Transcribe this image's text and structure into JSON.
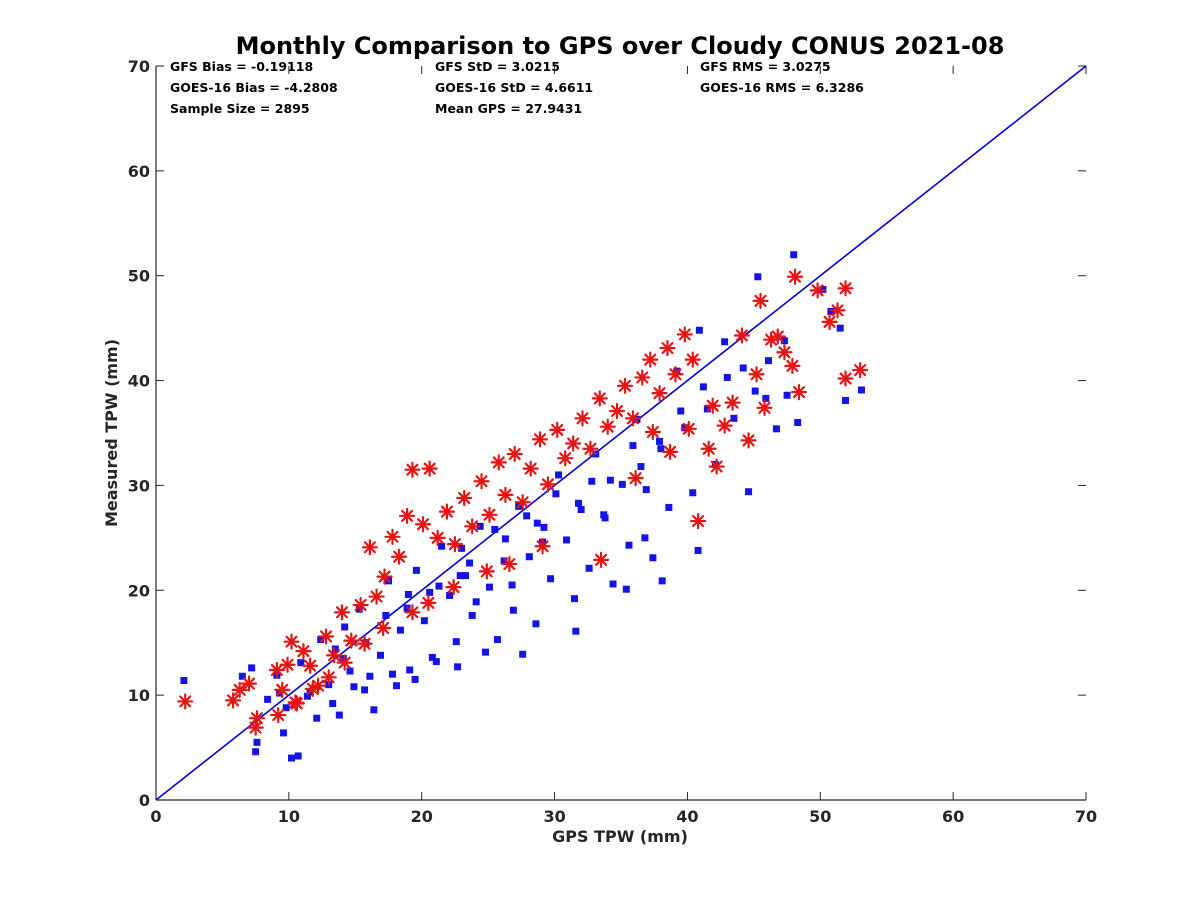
{
  "chart_data": {
    "type": "scatter",
    "title": "Monthly Comparison to GPS over Cloudy CONUS 2021-08",
    "xlabel": "GPS TPW (mm)",
    "ylabel": "Measured TPW (mm)",
    "xlim": [
      0,
      70
    ],
    "ylim": [
      0,
      70
    ],
    "xticks": [
      0,
      10,
      20,
      30,
      40,
      50,
      60,
      70
    ],
    "yticks": [
      0,
      10,
      20,
      30,
      40,
      50,
      60,
      70
    ],
    "grid": false,
    "stats": [
      [
        "GFS Bias = -0.19118",
        "GFS StD = 3.0215",
        "GFS RMS = 3.0275"
      ],
      [
        "GOES-16 Bias = -4.2808",
        "GOES-16 StD = 4.6611",
        "GOES-16 RMS = 6.3286"
      ],
      [
        "Sample Size = 2895",
        "Mean GPS = 27.9431",
        ""
      ]
    ],
    "reference_line": {
      "x": [
        0,
        70
      ],
      "y": [
        0,
        70
      ],
      "color": "#0000dd"
    },
    "series": [
      {
        "marker": "square",
        "color": "#1414e6",
        "points": [
          [
            2.1,
            11.4
          ],
          [
            6.5,
            11.8
          ],
          [
            7.2,
            12.6
          ],
          [
            7.5,
            4.6
          ],
          [
            7.6,
            5.5
          ],
          [
            9.1,
            11.9
          ],
          [
            9.6,
            6.4
          ],
          [
            9.8,
            8.8
          ],
          [
            10.2,
            4.0
          ],
          [
            10.7,
            4.2
          ],
          [
            10.9,
            13.1
          ],
          [
            11.4,
            9.9
          ],
          [
            12.1,
            7.8
          ],
          [
            12.4,
            15.3
          ],
          [
            13.0,
            11.0
          ],
          [
            13.5,
            14.4
          ],
          [
            13.8,
            8.1
          ],
          [
            14.2,
            16.5
          ],
          [
            14.6,
            12.3
          ],
          [
            15.3,
            18.2
          ],
          [
            15.7,
            10.5
          ],
          [
            16.4,
            8.6
          ],
          [
            16.9,
            13.8
          ],
          [
            17.5,
            20.9
          ],
          [
            18.1,
            10.9
          ],
          [
            18.4,
            16.2
          ],
          [
            19.1,
            12.4
          ],
          [
            19.6,
            21.9
          ],
          [
            20.2,
            17.1
          ],
          [
            20.8,
            13.6
          ],
          [
            21.5,
            24.2
          ],
          [
            22.1,
            19.5
          ],
          [
            22.6,
            15.1
          ],
          [
            23.3,
            21.4
          ],
          [
            23.8,
            17.6
          ],
          [
            24.4,
            26.1
          ],
          [
            25.1,
            20.3
          ],
          [
            25.7,
            15.3
          ],
          [
            26.2,
            22.8
          ],
          [
            26.9,
            18.1
          ],
          [
            27.3,
            28.0
          ],
          [
            28.1,
            23.2
          ],
          [
            28.6,
            16.8
          ],
          [
            29.2,
            26.0
          ],
          [
            29.7,
            21.1
          ],
          [
            30.3,
            31.0
          ],
          [
            30.9,
            24.8
          ],
          [
            31.5,
            19.2
          ],
          [
            32.0,
            27.7
          ],
          [
            32.6,
            22.1
          ],
          [
            33.1,
            33.0
          ],
          [
            33.8,
            26.9
          ],
          [
            34.4,
            20.6
          ],
          [
            35.1,
            30.1
          ],
          [
            35.6,
            24.3
          ],
          [
            36.2,
            36.3
          ],
          [
            36.9,
            29.6
          ],
          [
            37.4,
            23.1
          ],
          [
            38.0,
            33.5
          ],
          [
            38.6,
            27.9
          ],
          [
            39.2,
            40.9
          ],
          [
            39.8,
            35.5
          ],
          [
            40.4,
            29.3
          ],
          [
            40.9,
            44.8
          ],
          [
            41.5,
            37.3
          ],
          [
            42.1,
            32.0
          ],
          [
            42.8,
            43.7
          ],
          [
            43.5,
            36.4
          ],
          [
            44.6,
            29.4
          ],
          [
            45.3,
            49.9
          ],
          [
            45.9,
            38.3
          ],
          [
            46.7,
            35.4
          ],
          [
            47.3,
            43.8
          ],
          [
            48.0,
            52.0
          ],
          [
            48.3,
            36.0
          ],
          [
            50.2,
            48.7
          ],
          [
            50.8,
            46.6
          ],
          [
            51.5,
            45.0
          ],
          [
            51.9,
            38.1
          ],
          [
            53.1,
            39.1
          ],
          [
            40.8,
            23.8
          ],
          [
            36.8,
            25.0
          ],
          [
            35.4,
            20.1
          ],
          [
            38.1,
            20.9
          ],
          [
            31.6,
            16.1
          ],
          [
            27.6,
            13.9
          ],
          [
            24.8,
            14.1
          ],
          [
            22.7,
            12.7
          ],
          [
            21.1,
            13.2
          ],
          [
            19.5,
            11.5
          ],
          [
            17.8,
            12.0
          ],
          [
            16.1,
            11.8
          ],
          [
            14.9,
            10.8
          ],
          [
            13.3,
            9.2
          ],
          [
            11.6,
            10.3
          ],
          [
            10.4,
            9.1
          ],
          [
            9.3,
            10.2
          ],
          [
            8.4,
            9.6
          ],
          [
            33.7,
            27.2
          ],
          [
            29.1,
            24.6
          ],
          [
            26.8,
            20.5
          ],
          [
            24.1,
            18.9
          ],
          [
            22.9,
            21.4
          ],
          [
            20.6,
            19.8
          ],
          [
            18.9,
            18.3
          ],
          [
            17.3,
            17.6
          ],
          [
            15.8,
            15.0
          ],
          [
            14.1,
            13.5
          ],
          [
            36.5,
            31.8
          ],
          [
            34.2,
            30.5
          ],
          [
            31.8,
            28.3
          ],
          [
            28.7,
            26.4
          ],
          [
            26.3,
            24.9
          ],
          [
            23.6,
            22.6
          ],
          [
            21.3,
            20.4
          ],
          [
            19.0,
            19.6
          ],
          [
            37.9,
            34.2
          ],
          [
            39.5,
            37.1
          ],
          [
            41.2,
            39.4
          ],
          [
            43.0,
            40.3
          ],
          [
            44.2,
            41.2
          ],
          [
            45.1,
            39.0
          ],
          [
            46.1,
            41.9
          ],
          [
            47.5,
            38.6
          ],
          [
            35.9,
            33.8
          ],
          [
            32.8,
            30.4
          ],
          [
            30.1,
            29.2
          ],
          [
            27.9,
            27.1
          ],
          [
            25.5,
            25.8
          ],
          [
            23.0,
            24.0
          ]
        ]
      },
      {
        "marker": "asterisk",
        "color": "#e61414",
        "points": [
          [
            2.2,
            9.4
          ],
          [
            5.8,
            9.5
          ],
          [
            6.3,
            10.5
          ],
          [
            7.0,
            11.1
          ],
          [
            7.5,
            6.9
          ],
          [
            7.6,
            7.8
          ],
          [
            9.1,
            12.4
          ],
          [
            9.5,
            10.5
          ],
          [
            9.9,
            12.9
          ],
          [
            10.2,
            15.1
          ],
          [
            10.5,
            9.3
          ],
          [
            11.1,
            14.2
          ],
          [
            11.6,
            12.8
          ],
          [
            12.2,
            10.9
          ],
          [
            12.8,
            15.6
          ],
          [
            13.4,
            13.8
          ],
          [
            14.0,
            17.9
          ],
          [
            14.7,
            15.2
          ],
          [
            15.4,
            18.6
          ],
          [
            16.1,
            24.1
          ],
          [
            16.6,
            19.4
          ],
          [
            17.2,
            21.3
          ],
          [
            17.8,
            25.1
          ],
          [
            18.3,
            23.2
          ],
          [
            18.9,
            27.1
          ],
          [
            19.3,
            31.5
          ],
          [
            20.1,
            26.3
          ],
          [
            20.6,
            31.6
          ],
          [
            21.2,
            25.0
          ],
          [
            21.9,
            27.5
          ],
          [
            22.5,
            24.4
          ],
          [
            23.2,
            28.8
          ],
          [
            23.8,
            26.1
          ],
          [
            24.5,
            30.4
          ],
          [
            25.1,
            27.2
          ],
          [
            25.8,
            32.2
          ],
          [
            26.3,
            29.1
          ],
          [
            27.0,
            33.0
          ],
          [
            27.6,
            28.4
          ],
          [
            28.2,
            31.6
          ],
          [
            28.9,
            34.4
          ],
          [
            29.5,
            30.1
          ],
          [
            30.2,
            35.3
          ],
          [
            30.8,
            32.6
          ],
          [
            31.4,
            34.0
          ],
          [
            32.1,
            36.4
          ],
          [
            32.7,
            33.5
          ],
          [
            33.4,
            38.3
          ],
          [
            34.0,
            35.6
          ],
          [
            34.7,
            37.1
          ],
          [
            35.3,
            39.5
          ],
          [
            35.9,
            36.4
          ],
          [
            36.6,
            40.3
          ],
          [
            37.2,
            42.0
          ],
          [
            37.9,
            38.8
          ],
          [
            38.5,
            43.1
          ],
          [
            39.1,
            40.6
          ],
          [
            39.8,
            44.4
          ],
          [
            40.4,
            42.0
          ],
          [
            40.8,
            26.6
          ],
          [
            41.6,
            33.5
          ],
          [
            42.2,
            31.8
          ],
          [
            42.8,
            35.7
          ],
          [
            43.4,
            37.9
          ],
          [
            44.1,
            44.3
          ],
          [
            44.6,
            34.3
          ],
          [
            45.2,
            40.6
          ],
          [
            45.5,
            47.6
          ],
          [
            45.8,
            37.4
          ],
          [
            46.3,
            43.9
          ],
          [
            46.8,
            44.2
          ],
          [
            47.3,
            42.7
          ],
          [
            47.9,
            41.4
          ],
          [
            48.1,
            49.9
          ],
          [
            48.4,
            38.9
          ],
          [
            49.8,
            48.6
          ],
          [
            50.7,
            45.6
          ],
          [
            51.3,
            46.7
          ],
          [
            51.9,
            48.8
          ],
          [
            51.9,
            40.2
          ],
          [
            53.0,
            41.0
          ],
          [
            33.5,
            22.9
          ],
          [
            29.1,
            24.2
          ],
          [
            26.6,
            22.5
          ],
          [
            24.9,
            21.8
          ],
          [
            22.4,
            20.3
          ],
          [
            20.5,
            18.8
          ],
          [
            19.3,
            17.9
          ],
          [
            17.1,
            16.4
          ],
          [
            15.7,
            14.9
          ],
          [
            14.2,
            13.1
          ],
          [
            13.0,
            11.7
          ],
          [
            11.8,
            10.6
          ],
          [
            10.6,
            9.2
          ],
          [
            9.2,
            8.1
          ],
          [
            36.1,
            30.7
          ],
          [
            38.7,
            33.2
          ],
          [
            40.1,
            35.4
          ],
          [
            41.9,
            37.6
          ],
          [
            37.4,
            35.1
          ]
        ]
      }
    ]
  }
}
